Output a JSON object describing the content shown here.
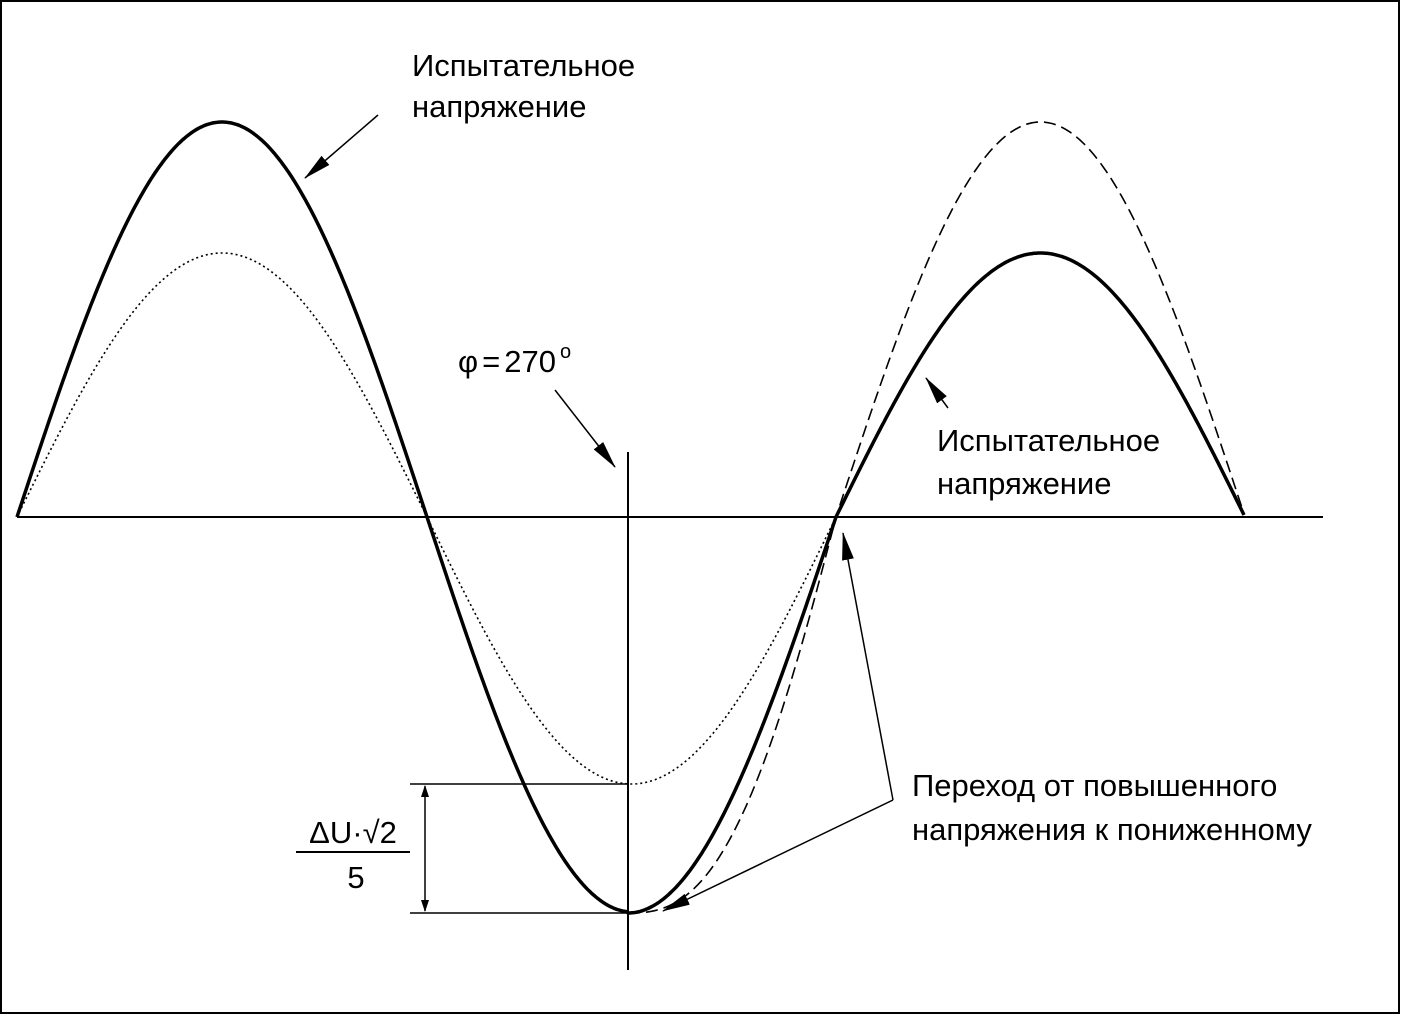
{
  "labels": {
    "test_voltage_left": [
      "Испытательное",
      "напряжение"
    ],
    "phase": {
      "symbol": "φ",
      "sign": "=",
      "angle": "270",
      "degree": "o"
    },
    "test_voltage_right": [
      "Испытательное",
      "напряжение"
    ],
    "fraction": {
      "numerator": "ΔU·√2",
      "denominator": "5"
    },
    "transition": [
      "Переход от повышенного",
      "напряжения к пониженному"
    ]
  }
}
